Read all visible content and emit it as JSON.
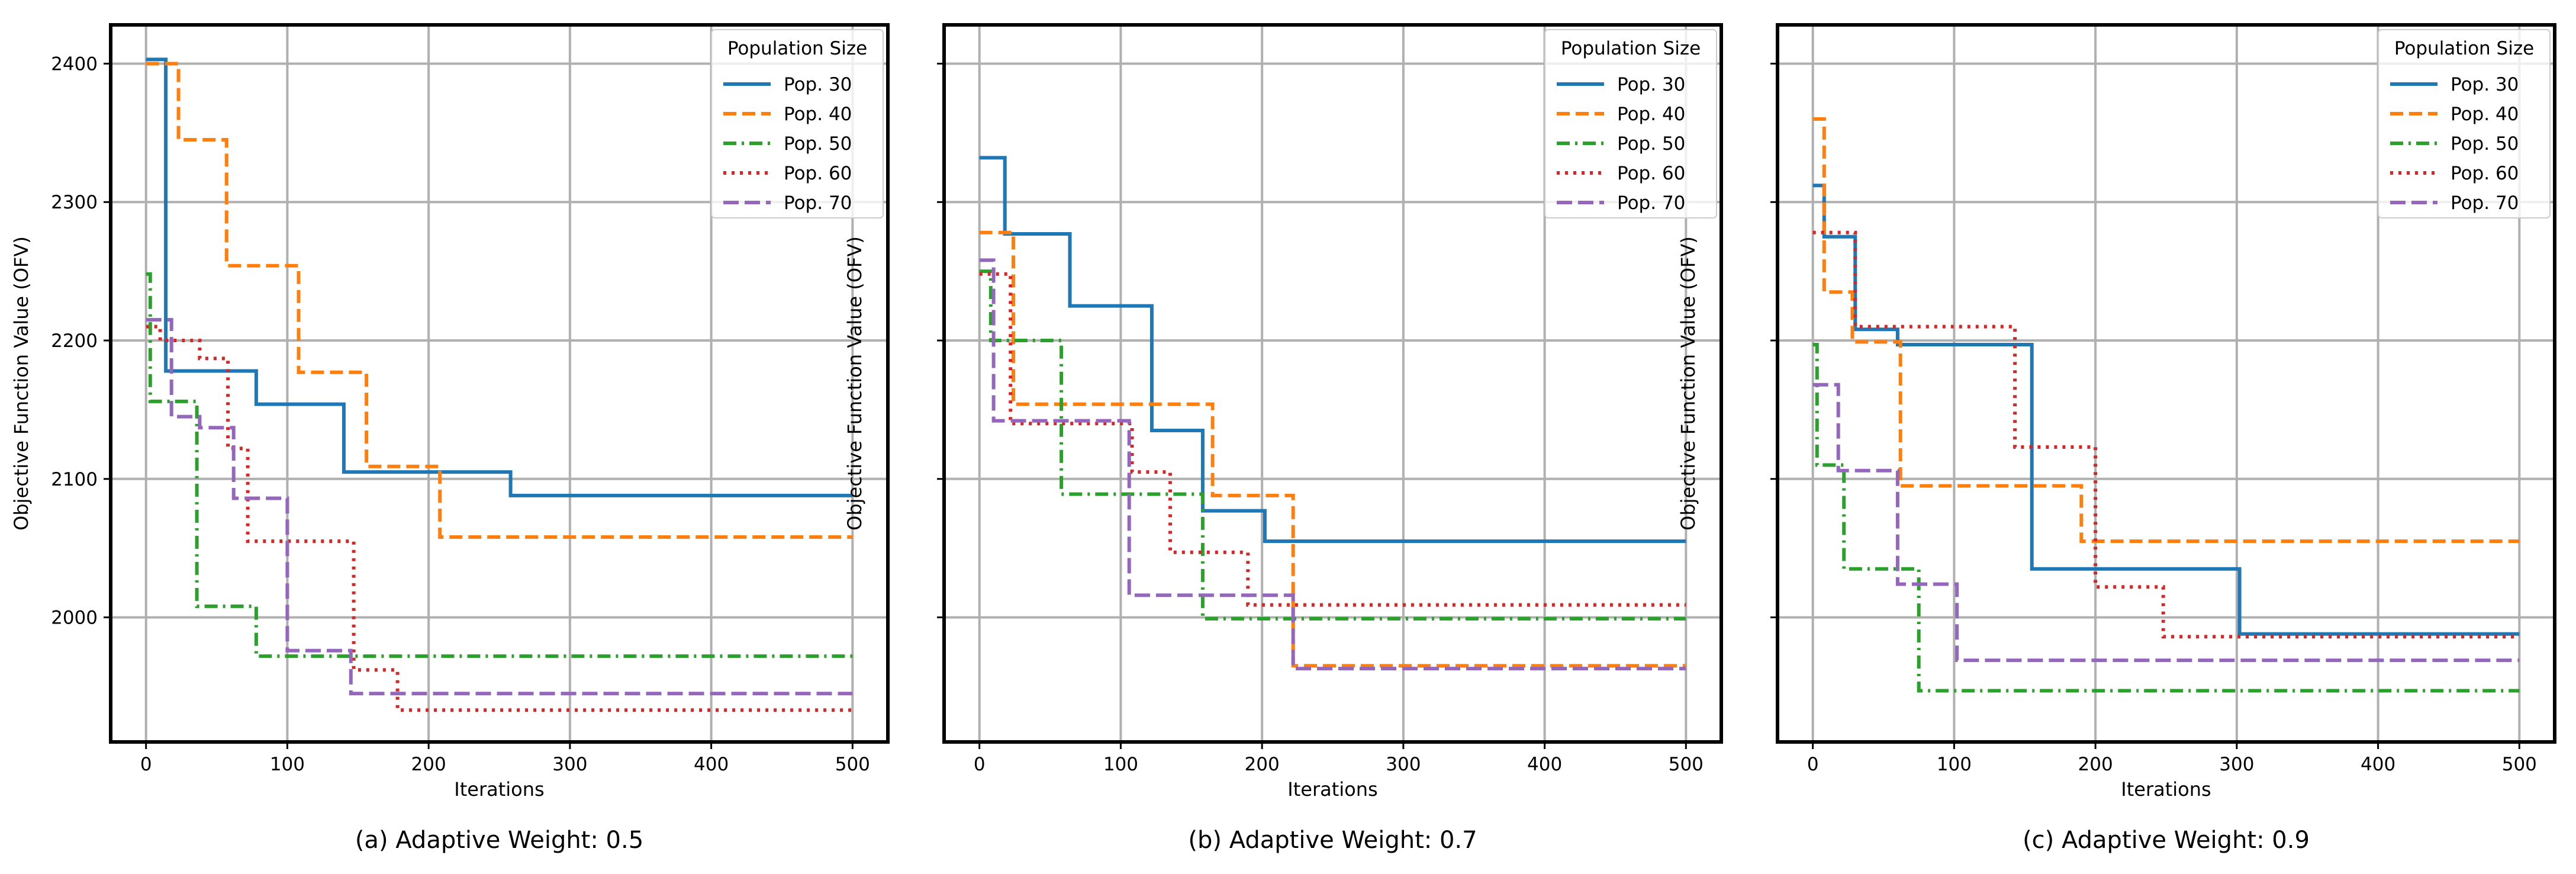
{
  "figure": {
    "colors": {
      "Pop. 30": "#1f77b4",
      "Pop. 40": "#ff7f0e",
      "Pop. 50": "#2ca02c",
      "Pop. 60": "#d62728",
      "Pop. 70": "#9467bd",
      "grid": "#b0b0b0",
      "frame": "#000000"
    }
  },
  "chart_data": [
    {
      "type": "line",
      "caption": "(a) Adaptive Weight: 0.5",
      "xlabel": "Iterations",
      "ylabel": "Objective Function Value (OFV)",
      "xlim": [
        -25,
        525
      ],
      "ylim": [
        1910,
        2428
      ],
      "xticks": [
        0,
        100,
        200,
        300,
        400,
        500
      ],
      "yticks": [
        2000,
        2100,
        2200,
        2300,
        2400
      ],
      "show_ytick_labels": true,
      "grid": true,
      "step": "post",
      "legend": {
        "title": "Population Size",
        "position": "top-right"
      },
      "series": [
        {
          "name": "Pop. 30",
          "style": "solid",
          "x": [
            0,
            14,
            78,
            140,
            258,
            500
          ],
          "y": [
            2403,
            2178,
            2154,
            2105,
            2088,
            2088
          ]
        },
        {
          "name": "Pop. 40",
          "style": "dashed",
          "x": [
            0,
            23,
            57,
            108,
            156,
            208,
            500
          ],
          "y": [
            2400,
            2345,
            2254,
            2177,
            2109,
            2058,
            2058
          ]
        },
        {
          "name": "Pop. 50",
          "style": "dashdot",
          "x": [
            0,
            3,
            36,
            78,
            500
          ],
          "y": [
            2248,
            2156,
            2008,
            1972,
            1972
          ]
        },
        {
          "name": "Pop. 60",
          "style": "dotted",
          "x": [
            0,
            10,
            38,
            58,
            72,
            147,
            178,
            500
          ],
          "y": [
            2210,
            2200,
            2187,
            2122,
            2055,
            1962,
            1933,
            1933
          ]
        },
        {
          "name": "Pop. 70",
          "style": "longdash",
          "x": [
            0,
            18,
            38,
            62,
            100,
            145,
            500
          ],
          "y": [
            2215,
            2145,
            2137,
            2086,
            1976,
            1945,
            1945
          ]
        }
      ]
    },
    {
      "type": "line",
      "caption": "(b) Adaptive Weight: 0.7",
      "xlabel": "Iterations",
      "ylabel": "Objective Function Value (OFV)",
      "xlim": [
        -25,
        525
      ],
      "ylim": [
        1910,
        2428
      ],
      "xticks": [
        0,
        100,
        200,
        300,
        400,
        500
      ],
      "yticks": [
        2000,
        2100,
        2200,
        2300,
        2400
      ],
      "show_ytick_labels": false,
      "grid": true,
      "step": "post",
      "legend": {
        "title": "Population Size",
        "position": "top-right"
      },
      "series": [
        {
          "name": "Pop. 30",
          "style": "solid",
          "x": [
            0,
            18,
            64,
            122,
            158,
            202,
            500
          ],
          "y": [
            2332,
            2277,
            2225,
            2135,
            2077,
            2055,
            2055
          ]
        },
        {
          "name": "Pop. 40",
          "style": "dashed",
          "x": [
            0,
            24,
            165,
            222,
            500
          ],
          "y": [
            2278,
            2154,
            2088,
            1965,
            1965
          ]
        },
        {
          "name": "Pop. 50",
          "style": "dashdot",
          "x": [
            0,
            8,
            58,
            158,
            500
          ],
          "y": [
            2250,
            2200,
            2089,
            1999,
            1999
          ]
        },
        {
          "name": "Pop. 60",
          "style": "dotted",
          "x": [
            0,
            22,
            108,
            135,
            190,
            500
          ],
          "y": [
            2248,
            2140,
            2105,
            2047,
            2009,
            2009
          ]
        },
        {
          "name": "Pop. 70",
          "style": "longdash",
          "x": [
            0,
            10,
            106,
            222,
            500
          ],
          "y": [
            2258,
            2142,
            2016,
            1963,
            1963
          ]
        }
      ]
    },
    {
      "type": "line",
      "caption": "(c) Adaptive Weight: 0.9",
      "xlabel": "Iterations",
      "ylabel": "Objective Function Value (OFV)",
      "xlim": [
        -25,
        525
      ],
      "ylim": [
        1910,
        2428
      ],
      "xticks": [
        0,
        100,
        200,
        300,
        400,
        500
      ],
      "yticks": [
        2000,
        2100,
        2200,
        2300,
        2400
      ],
      "show_ytick_labels": false,
      "grid": true,
      "step": "post",
      "legend": {
        "title": "Population Size",
        "position": "top-right"
      },
      "series": [
        {
          "name": "Pop. 30",
          "style": "solid",
          "x": [
            0,
            8,
            30,
            60,
            155,
            302,
            500
          ],
          "y": [
            2312,
            2275,
            2208,
            2197,
            2035,
            1988,
            1988
          ]
        },
        {
          "name": "Pop. 40",
          "style": "dashed",
          "x": [
            0,
            8,
            28,
            62,
            190,
            500
          ],
          "y": [
            2360,
            2235,
            2199,
            2095,
            2055,
            2055
          ]
        },
        {
          "name": "Pop. 50",
          "style": "dashdot",
          "x": [
            0,
            3,
            22,
            75,
            500
          ],
          "y": [
            2197,
            2110,
            2035,
            1947,
            1947
          ]
        },
        {
          "name": "Pop. 60",
          "style": "dotted",
          "x": [
            0,
            30,
            143,
            200,
            248,
            500
          ],
          "y": [
            2278,
            2210,
            2123,
            2022,
            1986,
            1986
          ]
        },
        {
          "name": "Pop. 70",
          "style": "longdash",
          "x": [
            0,
            18,
            60,
            102,
            500
          ],
          "y": [
            2168,
            2106,
            2024,
            1969,
            1969
          ]
        }
      ]
    }
  ]
}
